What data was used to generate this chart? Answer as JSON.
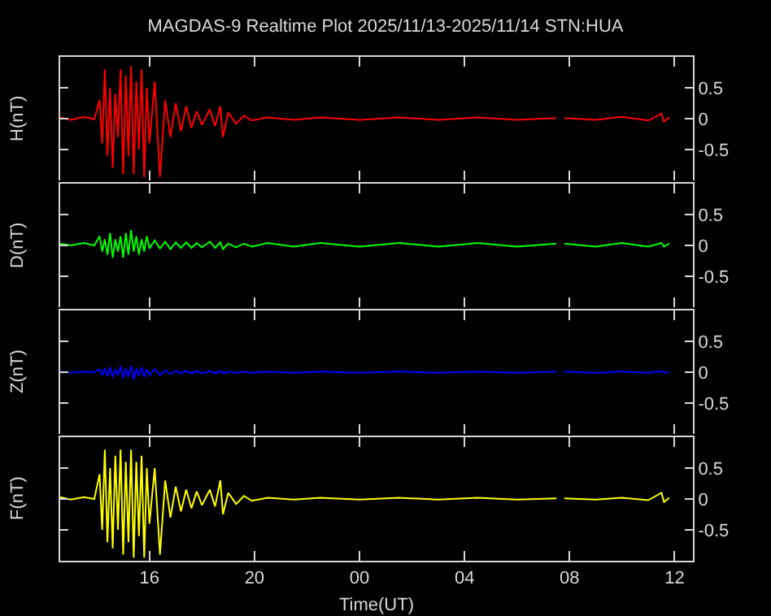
{
  "chart_data": [
    {
      "type": "line",
      "title": "MAGDAS-9 Realtime Plot 2025/11/13-2025/11/14 STN:HUA",
      "ylabel": "H(nT)",
      "tick_labels": "y",
      "xlim": [
        "2025-11-13T12:36",
        "2025-11-14T12:42"
      ],
      "ylim": [
        -1,
        1
      ],
      "yticks": [
        0.5,
        0,
        -0.5
      ],
      "x": [
        "2025-11-13T12:36",
        "2025-11-13T13:00",
        "2025-11-13T13:30",
        "2025-11-13T13:54",
        "2025-11-13T14:06",
        "2025-11-13T14:12",
        "2025-11-13T14:18",
        "2025-11-13T14:24",
        "2025-11-13T14:30",
        "2025-11-13T14:36",
        "2025-11-13T14:42",
        "2025-11-13T14:48",
        "2025-11-13T14:54",
        "2025-11-13T15:00",
        "2025-11-13T15:06",
        "2025-11-13T15:12",
        "2025-11-13T15:18",
        "2025-11-13T15:24",
        "2025-11-13T15:30",
        "2025-11-13T15:36",
        "2025-11-13T15:42",
        "2025-11-13T15:48",
        "2025-11-13T15:54",
        "2025-11-13T16:00",
        "2025-11-13T16:12",
        "2025-11-13T16:24",
        "2025-11-13T16:36",
        "2025-11-13T16:48",
        "2025-11-13T17:00",
        "2025-11-13T17:12",
        "2025-11-13T17:24",
        "2025-11-13T17:36",
        "2025-11-13T17:48",
        "2025-11-13T18:00",
        "2025-11-13T18:18",
        "2025-11-13T18:30",
        "2025-11-13T18:42",
        "2025-11-13T18:48",
        "2025-11-13T19:00",
        "2025-11-13T19:18",
        "2025-11-13T19:36",
        "2025-11-13T19:54",
        "2025-11-13T20:30",
        "2025-11-13T21:30",
        "2025-11-13T22:30",
        "2025-11-14T00:00",
        "2025-11-14T01:30",
        "2025-11-14T03:00",
        "2025-11-14T04:30",
        "2025-11-14T06:00",
        "2025-11-14T07:30",
        "2025-11-14T07:36",
        "2025-11-14T07:48",
        "2025-11-14T09:00",
        "2025-11-14T10:00",
        "2025-11-14T11:00",
        "2025-11-14T11:30",
        "2025-11-14T11:36",
        "2025-11-14T11:48"
      ],
      "series": [
        {
          "color": "#ff0000",
          "values": [
            0.02,
            -0.02,
            0.03,
            -0.01,
            0.3,
            -0.4,
            0.8,
            -0.6,
            0.5,
            -0.8,
            0.4,
            -0.3,
            0.8,
            -0.9,
            0.7,
            -0.6,
            0.85,
            -0.9,
            0.6,
            -0.5,
            0.8,
            -0.95,
            0.5,
            -0.4,
            0.6,
            -0.95,
            0.3,
            -0.3,
            0.25,
            -0.2,
            0.2,
            -0.15,
            0.12,
            -0.1,
            0.15,
            -0.12,
            0.2,
            -0.3,
            0.1,
            -0.08,
            0.05,
            -0.03,
            0.02,
            -0.02,
            0.02,
            -0.02,
            0.02,
            -0.02,
            0.02,
            -0.02,
            0.01,
            null,
            0.01,
            -0.02,
            0.03,
            -0.03,
            0.08,
            -0.05,
            0.02
          ]
        }
      ]
    },
    {
      "type": "line",
      "ylabel": "D(nT)",
      "tick_labels": "y",
      "xlim": [
        "2025-11-13T12:36",
        "2025-11-14T12:42"
      ],
      "ylim": [
        -1,
        1
      ],
      "yticks": [
        0.5,
        0,
        -0.5
      ],
      "x": [
        "2025-11-13T12:36",
        "2025-11-13T13:00",
        "2025-11-13T13:30",
        "2025-11-13T13:54",
        "2025-11-13T14:06",
        "2025-11-13T14:12",
        "2025-11-13T14:18",
        "2025-11-13T14:24",
        "2025-11-13T14:30",
        "2025-11-13T14:36",
        "2025-11-13T14:42",
        "2025-11-13T14:48",
        "2025-11-13T14:54",
        "2025-11-13T15:00",
        "2025-11-13T15:06",
        "2025-11-13T15:12",
        "2025-11-13T15:18",
        "2025-11-13T15:24",
        "2025-11-13T15:30",
        "2025-11-13T15:36",
        "2025-11-13T15:42",
        "2025-11-13T15:48",
        "2025-11-13T15:54",
        "2025-11-13T16:00",
        "2025-11-13T16:12",
        "2025-11-13T16:24",
        "2025-11-13T16:36",
        "2025-11-13T16:48",
        "2025-11-13T17:00",
        "2025-11-13T17:12",
        "2025-11-13T17:24",
        "2025-11-13T17:36",
        "2025-11-13T17:48",
        "2025-11-13T18:00",
        "2025-11-13T18:18",
        "2025-11-13T18:30",
        "2025-11-13T18:42",
        "2025-11-13T18:48",
        "2025-11-13T19:00",
        "2025-11-13T19:18",
        "2025-11-13T19:36",
        "2025-11-13T19:54",
        "2025-11-13T20:30",
        "2025-11-13T21:30",
        "2025-11-13T22:30",
        "2025-11-14T00:00",
        "2025-11-14T01:30",
        "2025-11-14T03:00",
        "2025-11-14T04:30",
        "2025-11-14T06:00",
        "2025-11-14T07:30",
        "2025-11-14T07:36",
        "2025-11-14T07:48",
        "2025-11-14T09:00",
        "2025-11-14T10:00",
        "2025-11-14T11:00",
        "2025-11-14T11:30",
        "2025-11-14T11:36",
        "2025-11-14T11:48"
      ],
      "series": [
        {
          "color": "#00ff00",
          "values": [
            0.03,
            0.0,
            0.04,
            0.0,
            0.15,
            -0.1,
            0.1,
            -0.15,
            0.2,
            -0.2,
            0.1,
            -0.1,
            0.15,
            -0.2,
            0.2,
            -0.15,
            0.25,
            -0.1,
            0.15,
            -0.15,
            0.1,
            -0.1,
            0.15,
            -0.05,
            0.08,
            -0.05,
            0.06,
            -0.06,
            0.05,
            -0.04,
            0.05,
            -0.04,
            0.04,
            -0.03,
            0.06,
            -0.04,
            0.05,
            -0.06,
            0.03,
            -0.03,
            0.03,
            -0.02,
            0.04,
            -0.02,
            0.04,
            -0.02,
            0.04,
            -0.02,
            0.04,
            -0.02,
            0.03,
            null,
            0.03,
            -0.02,
            0.04,
            -0.02,
            0.04,
            -0.02,
            0.03
          ]
        }
      ]
    },
    {
      "type": "line",
      "ylabel": "Z(nT)",
      "tick_labels": "y",
      "xlim": [
        "2025-11-13T12:36",
        "2025-11-14T12:42"
      ],
      "ylim": [
        -1,
        1
      ],
      "yticks": [
        0.5,
        0,
        -0.5
      ],
      "x": [
        "2025-11-13T12:36",
        "2025-11-13T13:00",
        "2025-11-13T13:30",
        "2025-11-13T13:54",
        "2025-11-13T14:06",
        "2025-11-13T14:12",
        "2025-11-13T14:18",
        "2025-11-13T14:24",
        "2025-11-13T14:30",
        "2025-11-13T14:36",
        "2025-11-13T14:42",
        "2025-11-13T14:48",
        "2025-11-13T14:54",
        "2025-11-13T15:00",
        "2025-11-13T15:06",
        "2025-11-13T15:12",
        "2025-11-13T15:18",
        "2025-11-13T15:24",
        "2025-11-13T15:30",
        "2025-11-13T15:36",
        "2025-11-13T15:42",
        "2025-11-13T15:48",
        "2025-11-13T15:54",
        "2025-11-13T16:00",
        "2025-11-13T16:12",
        "2025-11-13T16:24",
        "2025-11-13T16:36",
        "2025-11-13T16:48",
        "2025-11-13T17:00",
        "2025-11-13T17:12",
        "2025-11-13T17:24",
        "2025-11-13T17:36",
        "2025-11-13T17:48",
        "2025-11-13T18:00",
        "2025-11-13T18:18",
        "2025-11-13T18:30",
        "2025-11-13T18:42",
        "2025-11-13T18:48",
        "2025-11-13T19:00",
        "2025-11-13T19:18",
        "2025-11-13T19:36",
        "2025-11-13T19:54",
        "2025-11-13T20:30",
        "2025-11-13T21:30",
        "2025-11-13T22:30",
        "2025-11-14T00:00",
        "2025-11-14T01:30",
        "2025-11-14T03:00",
        "2025-11-14T04:30",
        "2025-11-14T06:00",
        "2025-11-14T07:30",
        "2025-11-14T07:36",
        "2025-11-14T07:48",
        "2025-11-14T09:00",
        "2025-11-14T10:00",
        "2025-11-14T11:00",
        "2025-11-14T11:30",
        "2025-11-14T11:36",
        "2025-11-14T11:48"
      ],
      "series": [
        {
          "color": "#0000ff",
          "values": [
            0.01,
            -0.01,
            0.01,
            0.0,
            0.05,
            -0.05,
            0.06,
            -0.06,
            0.08,
            -0.08,
            0.05,
            -0.05,
            0.1,
            -0.1,
            0.06,
            -0.07,
            0.1,
            -0.12,
            0.06,
            -0.06,
            0.08,
            -0.08,
            0.05,
            -0.05,
            0.05,
            -0.05,
            0.03,
            -0.03,
            0.02,
            -0.02,
            0.02,
            -0.02,
            0.02,
            -0.02,
            0.02,
            -0.02,
            0.02,
            -0.02,
            0.01,
            -0.01,
            0.01,
            -0.01,
            0.01,
            -0.01,
            0.01,
            -0.01,
            0.01,
            -0.01,
            0.01,
            -0.01,
            0.01,
            null,
            0.01,
            -0.01,
            0.01,
            -0.01,
            0.02,
            -0.01,
            0.0
          ]
        }
      ]
    },
    {
      "type": "line",
      "ylabel": "F(nT)",
      "xlabel": "Time(UT)",
      "xlim": [
        "2025-11-13T12:36",
        "2025-11-14T12:42"
      ],
      "xticks": [
        {
          "value": "2025-11-13T16:00",
          "label": "16"
        },
        {
          "value": "2025-11-13T20:00",
          "label": "20"
        },
        {
          "value": "2025-11-14T00:00",
          "label": "00"
        },
        {
          "value": "2025-11-14T04:00",
          "label": "04"
        },
        {
          "value": "2025-11-14T08:00",
          "label": "08"
        },
        {
          "value": "2025-11-14T12:00",
          "label": "12"
        }
      ],
      "ylim": [
        -1,
        1
      ],
      "yticks": [
        0.5,
        0,
        -0.5
      ],
      "x": [
        "2025-11-13T12:36",
        "2025-11-13T13:00",
        "2025-11-13T13:30",
        "2025-11-13T13:54",
        "2025-11-13T14:06",
        "2025-11-13T14:12",
        "2025-11-13T14:18",
        "2025-11-13T14:24",
        "2025-11-13T14:30",
        "2025-11-13T14:36",
        "2025-11-13T14:42",
        "2025-11-13T14:48",
        "2025-11-13T14:54",
        "2025-11-13T15:00",
        "2025-11-13T15:06",
        "2025-11-13T15:12",
        "2025-11-13T15:18",
        "2025-11-13T15:24",
        "2025-11-13T15:30",
        "2025-11-13T15:36",
        "2025-11-13T15:42",
        "2025-11-13T15:48",
        "2025-11-13T15:54",
        "2025-11-13T16:00",
        "2025-11-13T16:12",
        "2025-11-13T16:24",
        "2025-11-13T16:36",
        "2025-11-13T16:48",
        "2025-11-13T17:00",
        "2025-11-13T17:12",
        "2025-11-13T17:24",
        "2025-11-13T17:36",
        "2025-11-13T17:48",
        "2025-11-13T18:00",
        "2025-11-13T18:18",
        "2025-11-13T18:30",
        "2025-11-13T18:42",
        "2025-11-13T18:48",
        "2025-11-13T19:00",
        "2025-11-13T19:18",
        "2025-11-13T19:36",
        "2025-11-13T19:54",
        "2025-11-13T20:30",
        "2025-11-13T21:30",
        "2025-11-13T22:30",
        "2025-11-14T00:00",
        "2025-11-14T01:30",
        "2025-11-14T03:00",
        "2025-11-14T04:30",
        "2025-11-14T06:00",
        "2025-11-14T07:30",
        "2025-11-14T07:36",
        "2025-11-14T07:48",
        "2025-11-14T09:00",
        "2025-11-14T10:00",
        "2025-11-14T11:00",
        "2025-11-14T11:30",
        "2025-11-14T11:36",
        "2025-11-14T11:48"
      ],
      "series": [
        {
          "color": "#ffff00",
          "values": [
            0.03,
            -0.01,
            0.03,
            0.0,
            0.4,
            -0.5,
            0.8,
            -0.7,
            0.5,
            -0.8,
            0.7,
            -0.5,
            0.8,
            -0.9,
            0.6,
            -0.7,
            0.8,
            -0.95,
            0.6,
            -0.6,
            0.7,
            -0.95,
            0.5,
            -0.4,
            0.5,
            -0.9,
            0.3,
            -0.3,
            0.2,
            -0.2,
            0.15,
            -0.15,
            0.12,
            -0.1,
            0.15,
            -0.12,
            0.3,
            -0.25,
            0.1,
            -0.08,
            0.05,
            -0.03,
            0.02,
            -0.01,
            0.02,
            -0.01,
            0.02,
            -0.01,
            0.02,
            -0.01,
            0.01,
            null,
            0.01,
            -0.01,
            0.02,
            -0.02,
            0.1,
            -0.05,
            0.02
          ]
        }
      ]
    }
  ]
}
